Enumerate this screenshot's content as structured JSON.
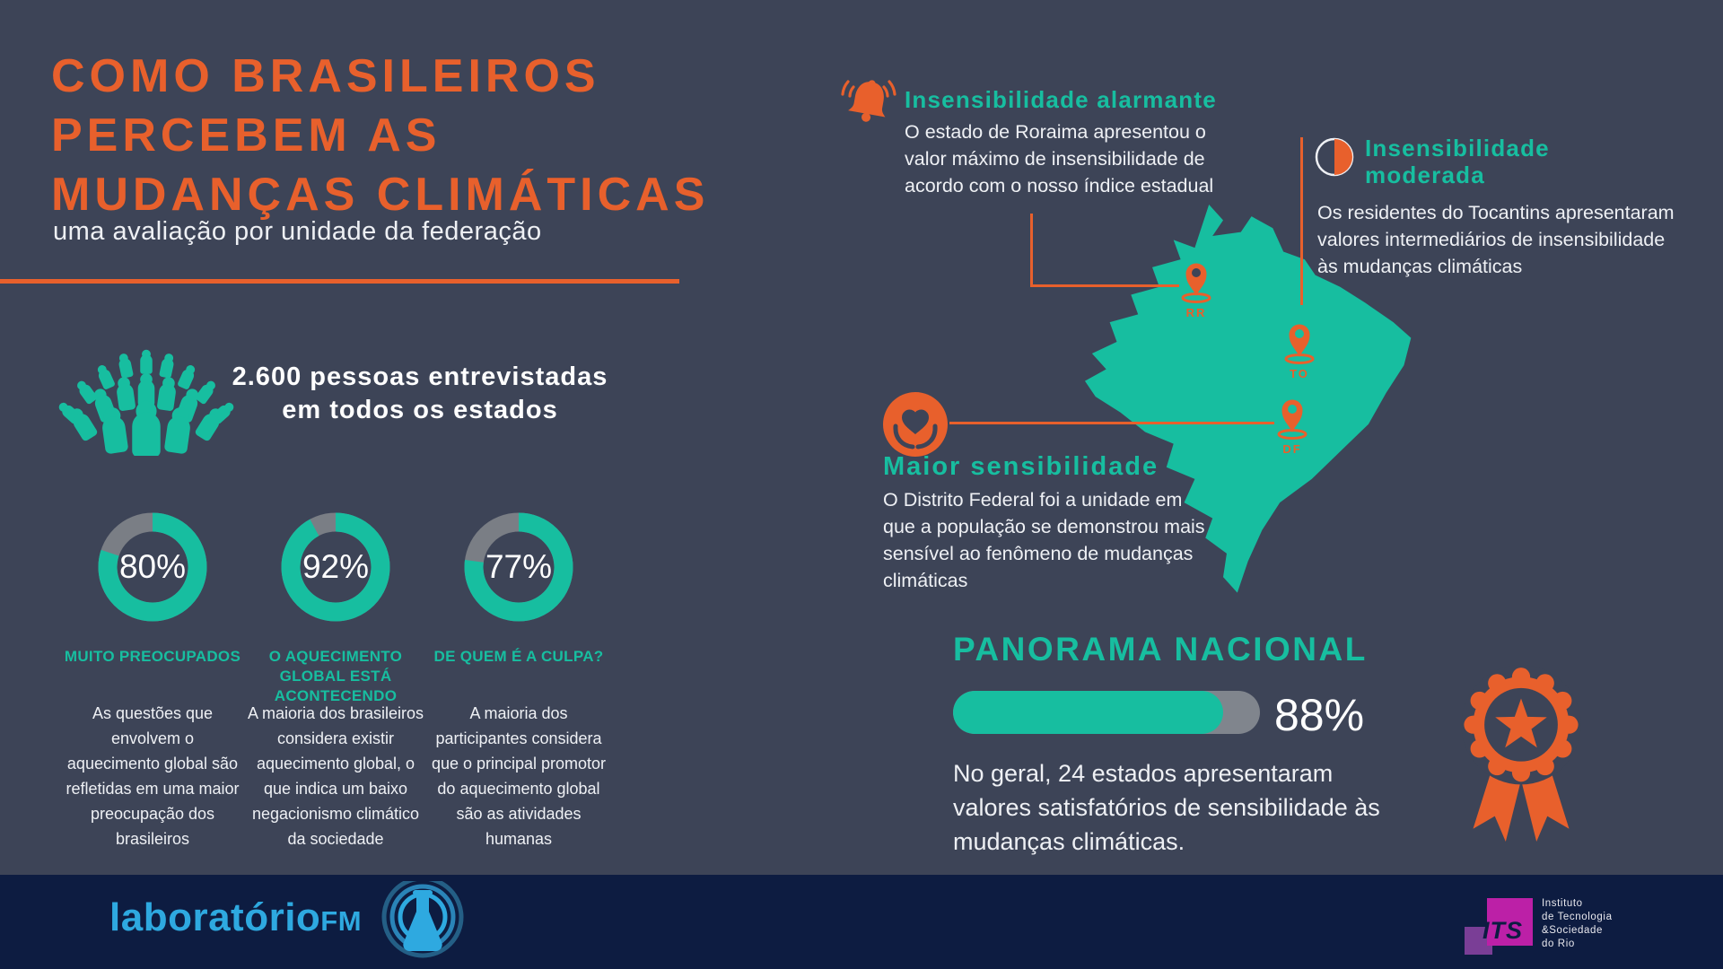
{
  "colors": {
    "background": "#3d4457",
    "footer_background": "#0d1c41",
    "accent_orange": "#e8602c",
    "accent_teal": "#17bea0",
    "donut_track_gray": "#7a7e85",
    "bar_track_gray": "#80858d",
    "logo_blue": "#2ea9e0",
    "its_magenta": "#bc20a7",
    "its_purple": "#7a3e96"
  },
  "header": {
    "title_line1": "COMO BRASILEIROS",
    "title_line2": "PERCEBEM AS",
    "title_line3": "MUDANÇAS CLIMÁTICAS",
    "subtitle": "uma avaliação por unidade da federação"
  },
  "survey": {
    "headline_line1": "2.600 pessoas entrevistadas",
    "headline_line2": "em todos os estados"
  },
  "donuts": [
    {
      "value": 80,
      "percent_label": "80%",
      "label": "MUITO PREOCUPADOS",
      "description": "As questões que envolvem o aquecimento global são refletidas em uma maior preocupação dos brasileiros"
    },
    {
      "value": 92,
      "percent_label": "92%",
      "label": "O AQUECIMENTO GLOBAL ESTÁ ACONTECENDO",
      "description": "A maioria dos brasileiros considera existir aquecimento global, o que indica um baixo negacionismo climático da sociedade"
    },
    {
      "value": 77,
      "percent_label": "77%",
      "label": "DE QUEM É A CULPA?",
      "description": "A maioria dos participantes considera que o principal promotor do aquecimento global são as atividades humanas"
    }
  ],
  "annotations": {
    "alarmante": {
      "title": "Insensibilidade alarmante",
      "body": "O estado de Roraima apresentou o valor máximo de insensibilidade de acordo com o nosso índice estadual"
    },
    "moderada": {
      "title": "Insensibilidade moderada",
      "body": "Os residentes do Tocantins apresentaram valores intermediários de insensibilidade às mudanças climáticas"
    },
    "sensibilidade": {
      "title": "Maior sensibilidade",
      "body": "O Distrito Federal foi a unidade em que a população se demonstrou mais sensível ao fenômeno de mudanças climáticas"
    }
  },
  "map": {
    "pins": [
      {
        "label": "RR"
      },
      {
        "label": "TO"
      },
      {
        "label": "DF"
      }
    ]
  },
  "panorama": {
    "title": "PANORAMA NACIONAL",
    "percent": 88,
    "percent_label": "88%",
    "body": "No geral, 24 estados apresentaram valores satisfatórios de sensibilidade às mudanças climáticas."
  },
  "footer": {
    "brand": "laboratório",
    "brand_suffix": "FM",
    "its_acronym": "ITS",
    "its_name_line1": "Instituto",
    "its_name_line2": "de Tecnologia",
    "its_name_line3": "&Sociedade",
    "its_name_line4": "do Rio"
  },
  "chart_data": [
    {
      "type": "pie",
      "title": "MUITO PREOCUPADOS",
      "categories": [
        "muito preocupados",
        "restante"
      ],
      "values": [
        80,
        20
      ],
      "unit": "%"
    },
    {
      "type": "pie",
      "title": "O AQUECIMENTO GLOBAL ESTÁ ACONTECENDO",
      "categories": [
        "concordam",
        "restante"
      ],
      "values": [
        92,
        8
      ],
      "unit": "%"
    },
    {
      "type": "pie",
      "title": "DE QUEM É A CULPA?",
      "categories": [
        "atividades humanas",
        "restante"
      ],
      "values": [
        77,
        23
      ],
      "unit": "%"
    },
    {
      "type": "bar",
      "title": "PANORAMA NACIONAL",
      "categories": [
        "estados com valores satisfatórios de sensibilidade"
      ],
      "values": [
        88
      ],
      "unit": "%",
      "xlim": [
        0,
        100
      ]
    }
  ]
}
